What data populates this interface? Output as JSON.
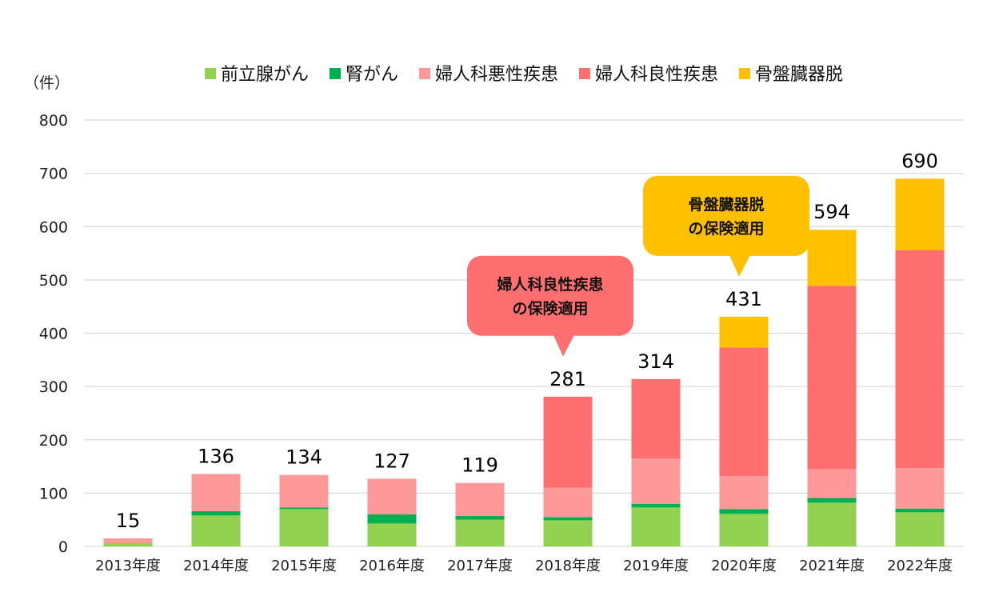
{
  "chart_data": {
    "type": "bar",
    "stacked": true,
    "ylabel": "（件）",
    "ylim": [
      0,
      800
    ],
    "yticks": [
      0,
      100,
      200,
      300,
      400,
      500,
      600,
      700,
      800
    ],
    "grid": true,
    "legend_position": "top",
    "categories": [
      "2013年度",
      "2014年度",
      "2015年度",
      "2016年度",
      "2017年度",
      "2018年度",
      "2019年度",
      "2020年度",
      "2021年度",
      "2022年度"
    ],
    "series": [
      {
        "name": "前立腺がん",
        "color": "#92d050",
        "values": [
          6,
          58,
          70,
          43,
          50,
          49,
          73,
          61,
          82,
          64
        ]
      },
      {
        "name": "腎がん",
        "color": "#00b050",
        "values": [
          0,
          8,
          3,
          17,
          7,
          6,
          7,
          9,
          9,
          7
        ]
      },
      {
        "name": "婦人科悪性疾患",
        "color": "#ff9999",
        "values": [
          9,
          70,
          61,
          67,
          62,
          55,
          85,
          62,
          54,
          76
        ]
      },
      {
        "name": "婦人科良性疾患",
        "color": "#ff6f6f",
        "values": [
          0,
          0,
          0,
          0,
          0,
          171,
          149,
          241,
          344,
          409
        ]
      },
      {
        "name": "骨盤臓器脱",
        "color": "#ffc000",
        "values": [
          0,
          0,
          0,
          0,
          0,
          0,
          0,
          58,
          105,
          134
        ]
      }
    ],
    "totals": [
      15,
      136,
      134,
      127,
      119,
      281,
      314,
      431,
      594,
      690
    ],
    "annotations": [
      {
        "lines": [
          "婦人科良性疾患",
          "の保険適用"
        ],
        "target_category": "2018年度",
        "color": "#ff6f6f"
      },
      {
        "lines": [
          "骨盤臓器脱",
          "の保険適用"
        ],
        "target_category": "2020年度",
        "color": "#ffc000"
      }
    ]
  }
}
